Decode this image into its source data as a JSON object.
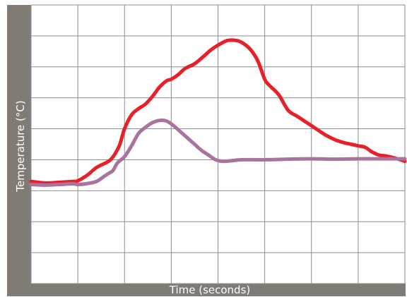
{
  "chart_data": {
    "type": "line",
    "title": "",
    "xlabel": "Time (seconds)",
    "ylabel": "Temperature (°C)",
    "tick_labels_shown": false,
    "grid": true,
    "legend": "none",
    "xlim": [
      0,
      8
    ],
    "ylim": [
      0,
      9
    ],
    "series": [
      {
        "color": "#e8202a",
        "x": [
          0,
          0.3,
          0.6,
          0.9,
          1.0,
          1.2,
          1.4,
          1.6,
          1.7,
          1.8,
          1.9,
          2.0,
          2.15,
          2.3,
          2.45,
          2.6,
          2.75,
          2.9,
          3.0,
          3.15,
          3.3,
          3.5,
          3.7,
          3.85,
          4.0,
          4.2,
          4.4,
          4.55,
          4.7,
          4.85,
          5.0,
          5.1,
          5.3,
          5.5,
          5.7,
          5.9,
          6.1,
          6.3,
          6.5,
          6.7,
          6.85,
          7.0,
          7.15,
          7.3,
          7.45,
          7.6,
          7.8,
          8.0
        ],
        "values": [
          3.3,
          3.25,
          3.27,
          3.3,
          3.32,
          3.5,
          3.75,
          3.9,
          4.0,
          4.2,
          4.5,
          5.0,
          5.45,
          5.65,
          5.8,
          6.05,
          6.35,
          6.55,
          6.6,
          6.75,
          6.95,
          7.1,
          7.35,
          7.55,
          7.7,
          7.85,
          7.85,
          7.75,
          7.55,
          7.2,
          6.6,
          6.4,
          6.1,
          5.6,
          5.4,
          5.2,
          5.0,
          4.8,
          4.65,
          4.55,
          4.5,
          4.45,
          4.4,
          4.25,
          4.15,
          4.12,
          4.05,
          3.95
        ]
      },
      {
        "color": "#a8739c",
        "x": [
          0,
          0.3,
          0.6,
          0.9,
          1.0,
          1.2,
          1.4,
          1.55,
          1.65,
          1.75,
          1.85,
          2.0,
          2.15,
          2.3,
          2.45,
          2.6,
          2.75,
          2.9,
          3.05,
          3.2,
          3.35,
          3.5,
          3.65,
          3.8,
          3.95,
          4.1,
          4.3,
          4.5,
          5.0,
          5.5,
          6.0,
          6.5,
          7.0,
          7.5,
          8.0
        ],
        "values": [
          3.2,
          3.18,
          3.2,
          3.22,
          3.2,
          3.23,
          3.3,
          3.45,
          3.55,
          3.65,
          3.9,
          4.1,
          4.45,
          4.85,
          5.05,
          5.2,
          5.27,
          5.25,
          5.1,
          4.9,
          4.7,
          4.5,
          4.3,
          4.15,
          4.0,
          3.95,
          3.97,
          4.0,
          4.0,
          4.02,
          4.03,
          4.02,
          4.03,
          4.03,
          4.03
        ]
      }
    ]
  }
}
